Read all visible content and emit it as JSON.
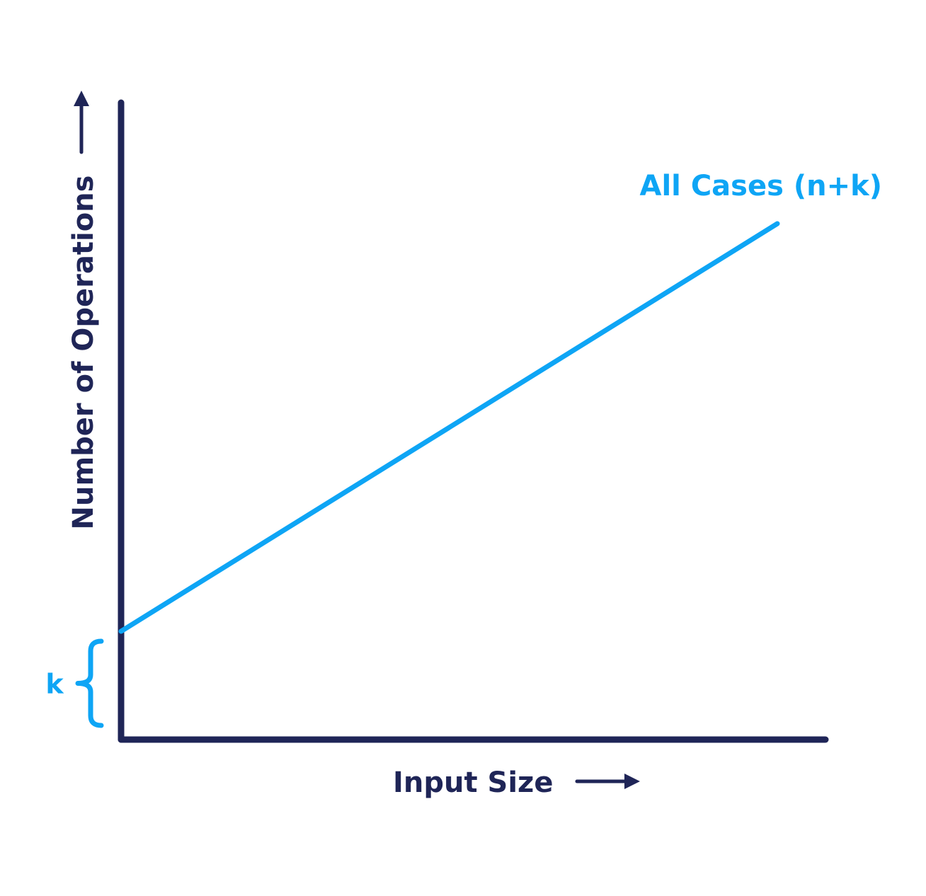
{
  "chart_data": {
    "type": "line",
    "xlabel": "Input Size",
    "ylabel": "Number of Operations",
    "xlim": [
      0,
      10
    ],
    "ylim": [
      0,
      10
    ],
    "grid": false,
    "series": [
      {
        "name": "All Cases (n+k)",
        "x": [
          0,
          10
        ],
        "y": [
          1.7,
          8.1
        ]
      }
    ],
    "annotations": [
      {
        "label": "k",
        "from_y": 0,
        "to_y": 1.7
      }
    ]
  },
  "colors": {
    "axis": "#1f2557",
    "series": "#0ea5f5"
  }
}
